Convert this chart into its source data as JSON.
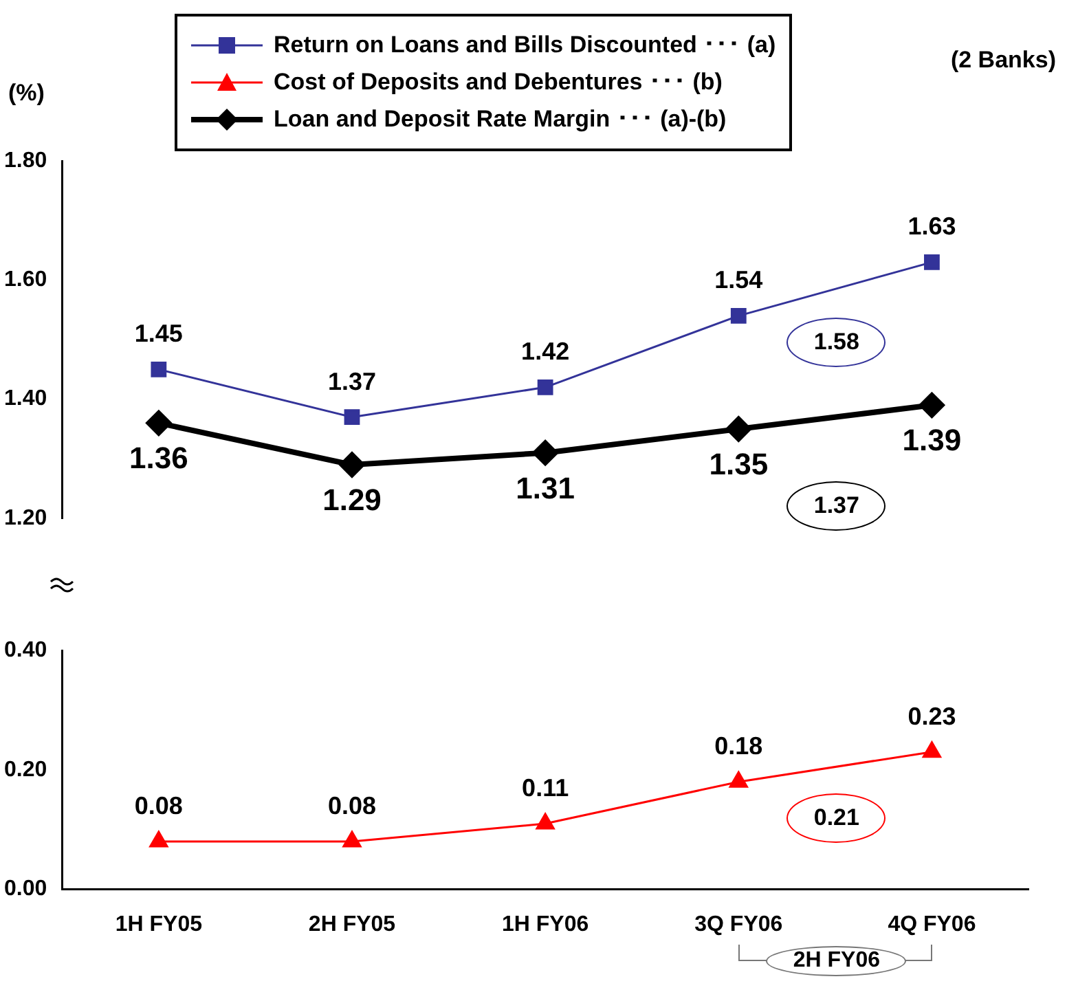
{
  "chart_data": [
    {
      "type": "line",
      "categories": [
        null,
        null,
        null,
        null,
        null
      ],
      "series": [
        {
          "name": "Return on Loans and Bills Discounted ･･･ (a)",
          "color": "#333399",
          "marker": "square",
          "values": [
            1.45,
            1.37,
            1.42,
            1.54,
            1.63
          ]
        },
        {
          "name": "Loan and Deposit Rate Margin ･･･ (a)-(b)",
          "color": "#000000",
          "marker": "diamond",
          "values": [
            1.36,
            1.29,
            1.31,
            1.35,
            1.39
          ]
        }
      ],
      "ylim": [
        1.2,
        1.8
      ],
      "yticks": [
        {
          "value": 1.2,
          "label": "1.20"
        },
        {
          "value": 1.4,
          "label": "1.40"
        },
        {
          "value": 1.6,
          "label": "1.60"
        },
        {
          "value": 1.8,
          "label": "1.80"
        }
      ],
      "tick_labels": "y",
      "data_labels": true,
      "grid": false,
      "legend": "top",
      "annotations": [
        "(%)",
        "(2 Banks)",
        "1.58",
        "1.37"
      ]
    },
    {
      "type": "line",
      "categories": [
        "1H FY05",
        "2H FY05",
        "1H FY06",
        "3Q FY06",
        "4Q FY06"
      ],
      "series": [
        {
          "name": "Cost of Deposits and Debentures ･･･ (b)",
          "color": "#ff0000",
          "marker": "triangle",
          "values": [
            0.08,
            0.08,
            0.11,
            0.18,
            0.23
          ]
        }
      ],
      "ylim": [
        0,
        0.4
      ],
      "yticks": [
        {
          "value": 0,
          "label": "0.00"
        },
        {
          "value": 0.2,
          "label": "0.20"
        },
        {
          "value": 0.4,
          "label": "0.40"
        }
      ],
      "data_labels": true,
      "grid": false,
      "legend": "top",
      "annotations": [
        "0.21",
        "2H FY06"
      ]
    }
  ]
}
